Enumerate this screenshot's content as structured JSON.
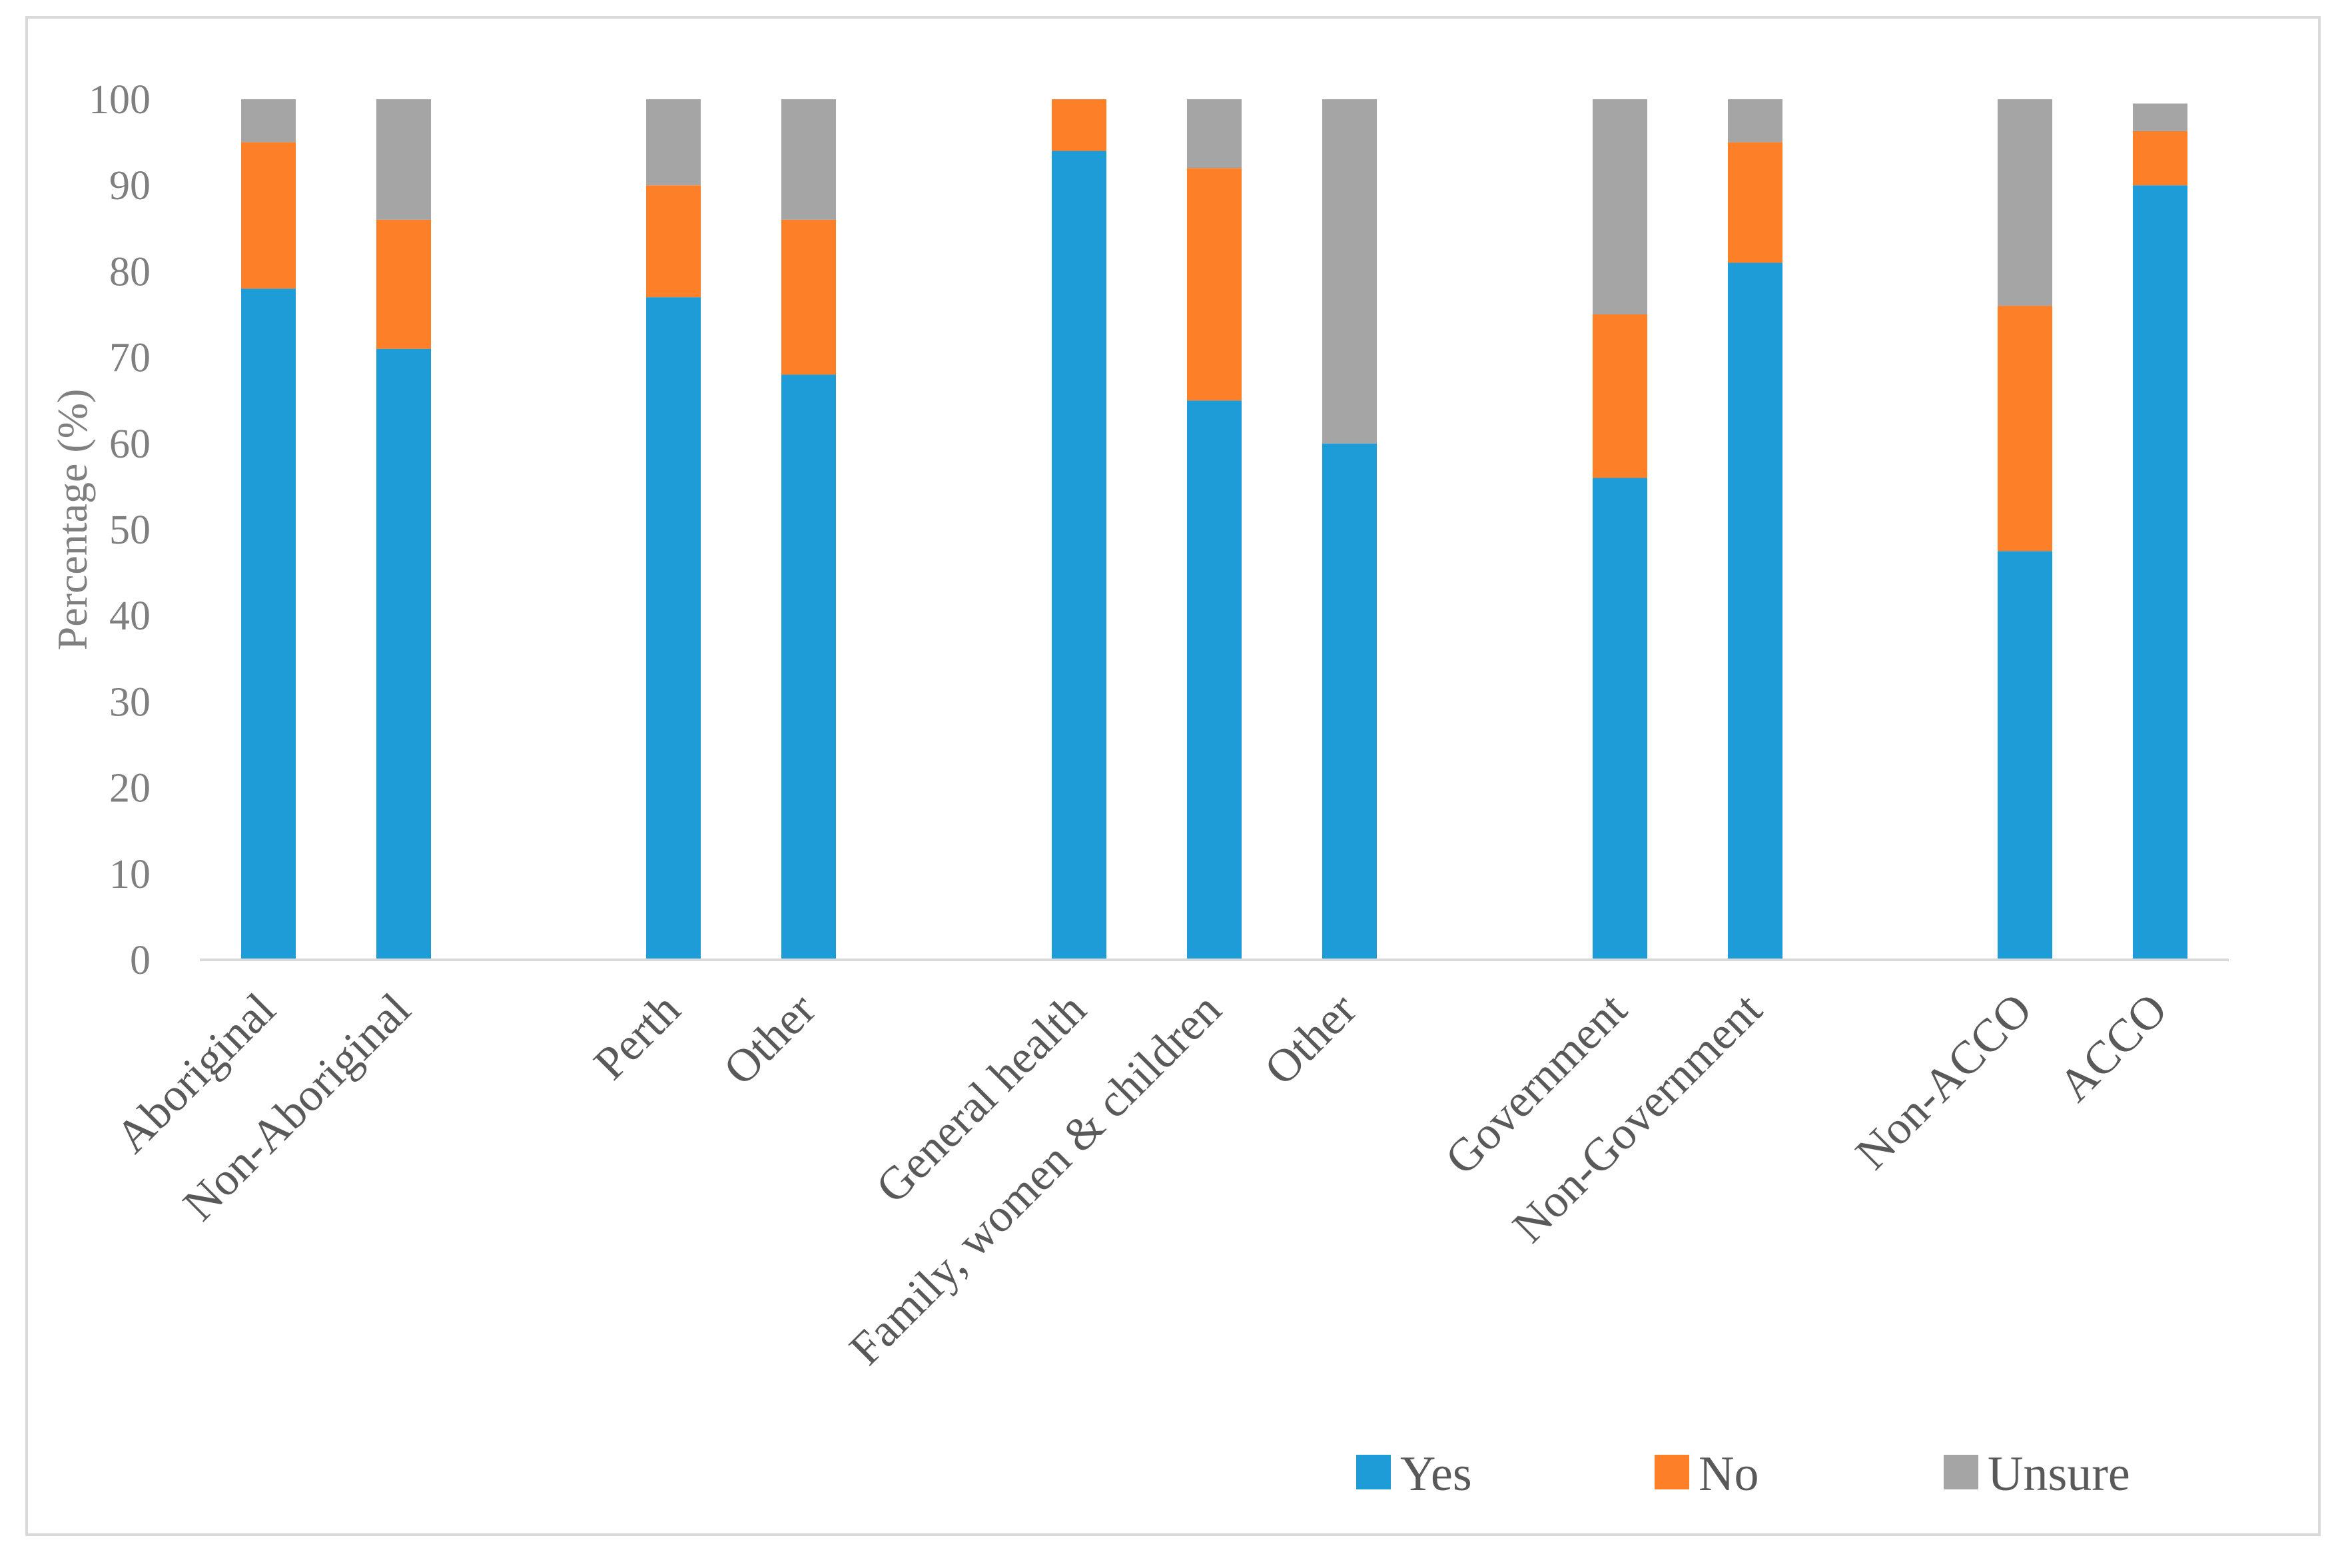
{
  "chart_data": {
    "type": "bar",
    "stacked": true,
    "title": "",
    "xlabel": "",
    "ylabel": "Percentage (%)",
    "ylim": [
      0,
      100
    ],
    "yticks": [
      0,
      10,
      20,
      30,
      40,
      50,
      60,
      70,
      80,
      90,
      100
    ],
    "grid": false,
    "legend_position": "bottom-right",
    "groups": [
      [
        "Aboriginal",
        "Non-Aboriginal"
      ],
      [
        "Perth",
        "Other"
      ],
      [
        "General health",
        "Family, women & children",
        "Other"
      ],
      [
        "Government",
        "Non-Government"
      ],
      [
        "Non-ACCO",
        "ACCO"
      ]
    ],
    "categories": [
      "Aboriginal",
      "Non-Aboriginal",
      "Perth",
      "Other",
      "General health",
      "Family, women & children",
      "Other",
      "Government",
      "Non-Government",
      "Non-ACCO",
      "ACCO"
    ],
    "series": [
      {
        "name": "Yes",
        "color": "#1e9cd7",
        "values": [
          78,
          71,
          77,
          68,
          94,
          65,
          60,
          56,
          81,
          47.5,
          90
        ]
      },
      {
        "name": "No",
        "color": "#fd7f27",
        "values": [
          17,
          15,
          13,
          18,
          6,
          27,
          0,
          19,
          14,
          28.5,
          6.3
        ]
      },
      {
        "name": "Unsure",
        "color": "#a5a5a5",
        "values": [
          5,
          14,
          10,
          14,
          0,
          8,
          40,
          25,
          5,
          24,
          3.2
        ]
      }
    ]
  }
}
